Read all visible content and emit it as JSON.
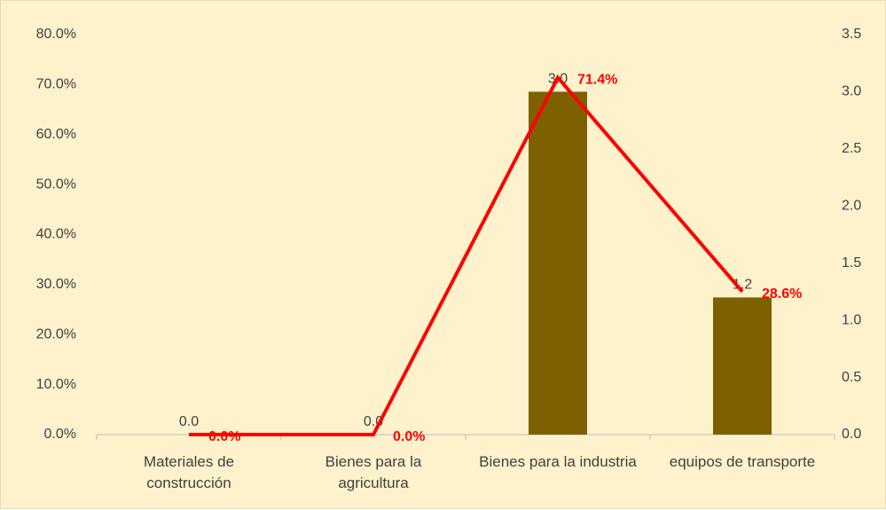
{
  "chart_data": {
    "type": "bar",
    "categories": [
      "Materiales de construcción",
      "Bienes para la agricultura",
      "Bienes para la industria",
      "equipos de transporte"
    ],
    "series": [
      {
        "type": "bar",
        "axis": "y2",
        "color": "#7f6000",
        "values": [
          0,
          0,
          3,
          1.2
        ],
        "value_labels": [
          "0.0",
          "0.0",
          "3.0",
          "1.2"
        ]
      },
      {
        "type": "line",
        "color": "#ff0000",
        "values": [
          0,
          0,
          71.4,
          28.6
        ],
        "value_labels": [
          "0.0%",
          "0.0%",
          "71.4%",
          "28.6%"
        ]
      }
    ],
    "ylim": [
      0,
      80
    ],
    "yticks": [
      {
        "value": 0,
        "label": "0.0%"
      },
      {
        "value": 10,
        "label": "10.0%"
      },
      {
        "value": 20,
        "label": "20.0%"
      },
      {
        "value": 30,
        "label": "30.0%"
      },
      {
        "value": 40,
        "label": "40.0%"
      },
      {
        "value": 50,
        "label": "50.0%"
      },
      {
        "value": 60,
        "label": "60.0%"
      },
      {
        "value": 70,
        "label": "70.0%"
      },
      {
        "value": 80,
        "label": "80.0%"
      }
    ],
    "y2lim": [
      0,
      3.5
    ],
    "y2ticks": [
      {
        "value": 0,
        "label": "0.0"
      },
      0.5,
      {
        "value": 1,
        "label": "1.0"
      },
      1.5,
      {
        "value": 2,
        "label": "2.0"
      },
      2.5,
      {
        "value": 3,
        "label": "3.0"
      },
      3.5
    ]
  }
}
